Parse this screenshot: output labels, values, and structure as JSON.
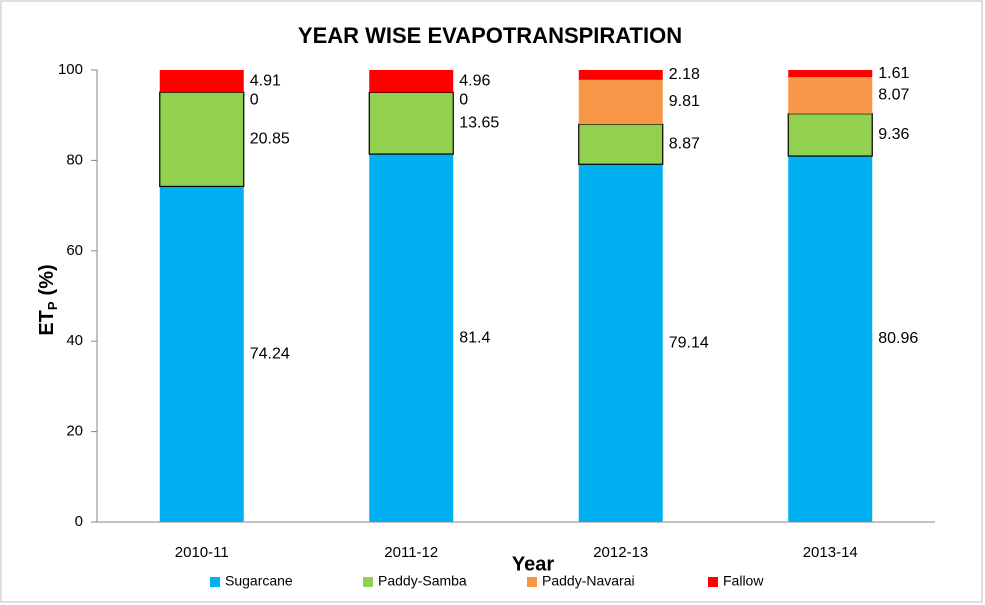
{
  "chart_data": {
    "type": "stacked_bar",
    "title": "YEAR WISE EVAPOTRANSPIRATION",
    "xlabel": "Year",
    "ylabel": {
      "main": "ET",
      "sub": "P",
      "unit": "(%)"
    },
    "categories": [
      "2010-11",
      "2011-12",
      "2012-13",
      "2013-14"
    ],
    "series": [
      {
        "name": "Sugarcane",
        "color": "#00b0f0",
        "values": [
          74.24,
          81.4,
          79.14,
          80.96
        ]
      },
      {
        "name": "Paddy-Samba",
        "color": "#92d050",
        "outline": "#000000",
        "values": [
          20.85,
          13.65,
          8.87,
          9.36
        ]
      },
      {
        "name": "Paddy-Navarai",
        "color": "#f79646",
        "values": [
          0,
          0,
          9.81,
          8.07
        ]
      },
      {
        "name": "Fallow",
        "color": "#ff0000",
        "values": [
          4.91,
          4.96,
          2.18,
          1.61
        ]
      }
    ],
    "ylim": [
      0,
      100
    ],
    "yticks": [
      0,
      20,
      40,
      60,
      80,
      100
    ],
    "legend": "bottom"
  }
}
